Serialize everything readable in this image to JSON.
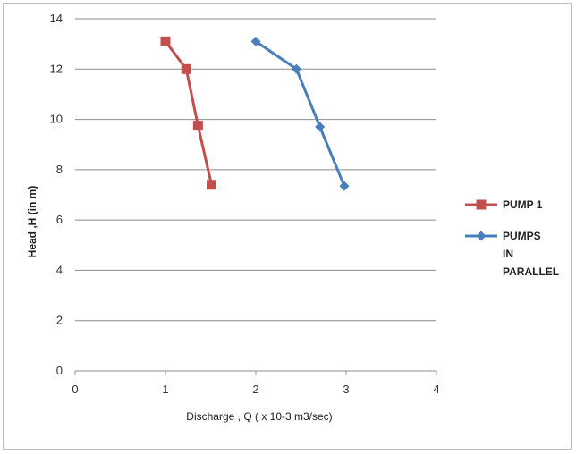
{
  "chart_data": {
    "type": "line",
    "title": "",
    "xlabel": "Discharge  , Q ( x 10-3 m3/sec)",
    "ylabel": "Head ,H (in m)",
    "xlim": [
      0,
      4
    ],
    "ylim": [
      0,
      14
    ],
    "xticks": [
      0,
      1,
      2,
      3,
      4
    ],
    "yticks": [
      0,
      2,
      4,
      6,
      8,
      10,
      12,
      14
    ],
    "grid": "horizontal",
    "legend_position": "right",
    "series": [
      {
        "name": "PUMP 1",
        "legend_lines": [
          "PUMP 1"
        ],
        "color": "#c0504d",
        "marker": "square",
        "x": [
          1.0,
          1.23,
          1.36,
          1.51
        ],
        "y": [
          13.1,
          12.0,
          9.75,
          7.4
        ]
      },
      {
        "name": "PUMPS IN PARALLEL",
        "legend_lines": [
          "PUMPS",
          "IN",
          "PARALLEL"
        ],
        "color": "#4a7ebb",
        "marker": "diamond",
        "x": [
          2.0,
          2.45,
          2.71,
          2.98
        ],
        "y": [
          13.1,
          12.0,
          9.7,
          7.35
        ]
      }
    ]
  }
}
